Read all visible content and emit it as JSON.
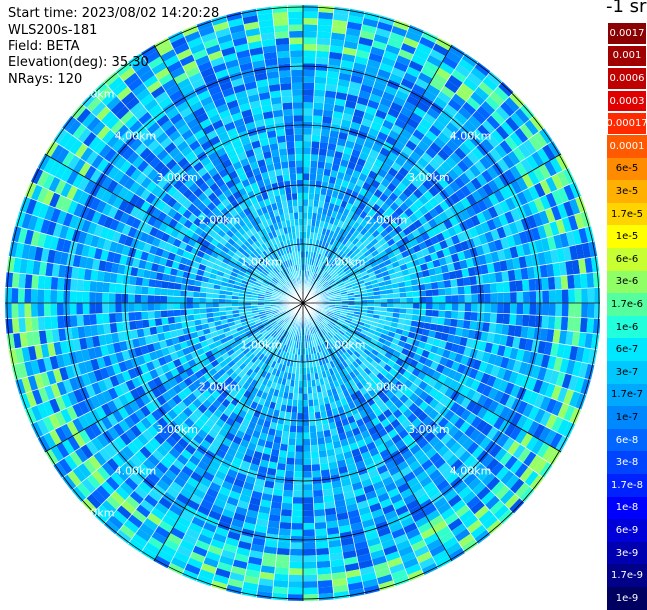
{
  "header": {
    "start_time": "Start time: 2023/08/02 14:20:28",
    "station": "WLS200s-181",
    "field": "Field: BETA",
    "elevation": "Elevation(deg): 35.30",
    "nrays": "NRays: 120"
  },
  "unit_label": "-1 sr",
  "range_labels": [
    "1.00km",
    "2.00km",
    "3.00km",
    "4.00km",
    "5.00km"
  ],
  "colorbar": [
    {
      "label": "0.0017",
      "bg": "#8b0000",
      "fg": "#ffffff"
    },
    {
      "label": "0.001",
      "bg": "#a00000",
      "fg": "#ffffff"
    },
    {
      "label": "0.0006",
      "bg": "#c00000",
      "fg": "#ffffff"
    },
    {
      "label": "0.0003",
      "bg": "#e00000",
      "fg": "#ffffff"
    },
    {
      "label": "0.00017",
      "bg": "#ff2a00",
      "fg": "#ffffff"
    },
    {
      "label": "0.0001",
      "bg": "#ff5a00",
      "fg": "#ffffff"
    },
    {
      "label": "6e-5",
      "bg": "#ff8c00",
      "fg": "#000000"
    },
    {
      "label": "3e-5",
      "bg": "#ffb000",
      "fg": "#000000"
    },
    {
      "label": "1.7e-5",
      "bg": "#ffd400",
      "fg": "#000000"
    },
    {
      "label": "1e-5",
      "bg": "#ffff00",
      "fg": "#000000"
    },
    {
      "label": "6e-6",
      "bg": "#c8ff33",
      "fg": "#000000"
    },
    {
      "label": "3e-6",
      "bg": "#90ff66",
      "fg": "#000000"
    },
    {
      "label": "1.7e-6",
      "bg": "#55ffa0",
      "fg": "#000000"
    },
    {
      "label": "1e-6",
      "bg": "#22ffdd",
      "fg": "#000000"
    },
    {
      "label": "6e-7",
      "bg": "#00e8ff",
      "fg": "#000000"
    },
    {
      "label": "3e-7",
      "bg": "#00c8ff",
      "fg": "#000000"
    },
    {
      "label": "1.7e-7",
      "bg": "#00a8ff",
      "fg": "#000000"
    },
    {
      "label": "1e-7",
      "bg": "#0088ff",
      "fg": "#000000"
    },
    {
      "label": "6e-8",
      "bg": "#0066ff",
      "fg": "#ffffff"
    },
    {
      "label": "3e-8",
      "bg": "#0044ff",
      "fg": "#ffffff"
    },
    {
      "label": "1.7e-8",
      "bg": "#0022ff",
      "fg": "#ffffff"
    },
    {
      "label": "1e-8",
      "bg": "#0000ff",
      "fg": "#ffffff"
    },
    {
      "label": "6e-9",
      "bg": "#0000d8",
      "fg": "#ffffff"
    },
    {
      "label": "3e-9",
      "bg": "#0000b0",
      "fg": "#ffffff"
    },
    {
      "label": "1.7e-9",
      "bg": "#000088",
      "fg": "#ffffff"
    },
    {
      "label": "1e-9",
      "bg": "#000060",
      "fg": "#ffffff"
    }
  ]
}
